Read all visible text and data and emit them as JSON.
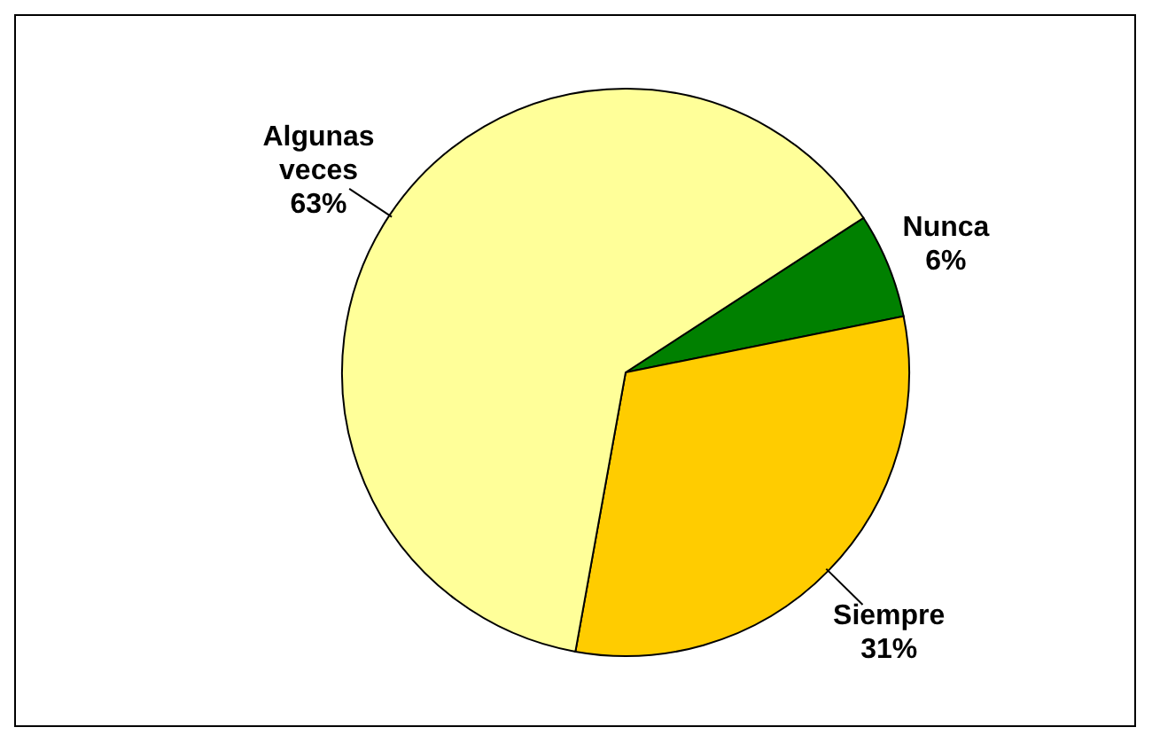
{
  "chart_data": {
    "type": "pie",
    "categories": [
      "Nunca",
      "Siempre",
      "Algunas veces"
    ],
    "values": [
      6,
      31,
      63
    ],
    "colors": [
      "#008000",
      "#ffcc00",
      "#ffff99"
    ],
    "value_labels": [
      "6%",
      "31%",
      "63%"
    ]
  }
}
